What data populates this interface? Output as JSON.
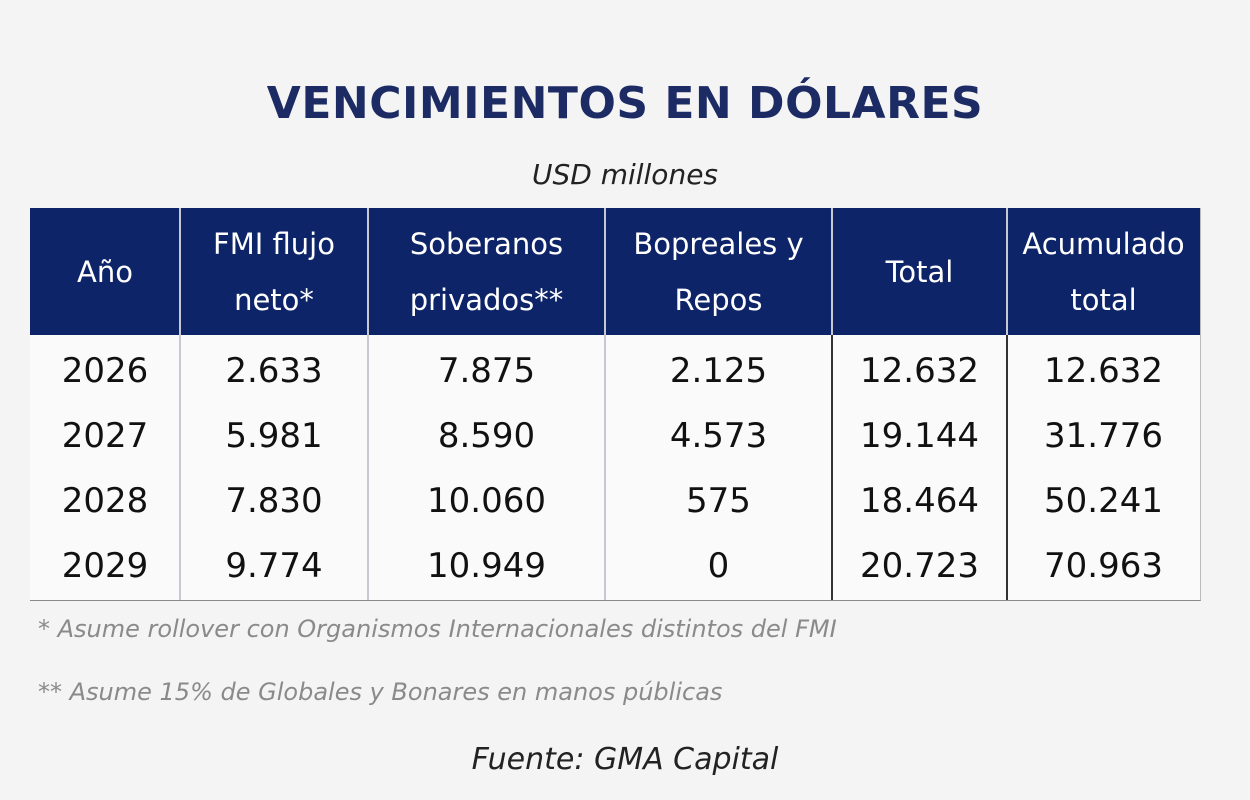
{
  "title": "VENCIMIENTOS EN DÓLARES",
  "subtitle": "USD millones",
  "table": {
    "header": [
      [
        "Año"
      ],
      [
        "FMI flujo",
        "neto*"
      ],
      [
        "Soberanos",
        "privados**"
      ],
      [
        "Bopreales y",
        "Repos"
      ],
      [
        "Total"
      ],
      [
        "Acumulado",
        "total"
      ]
    ],
    "rows": [
      [
        "2026",
        "2.633",
        "7.875",
        "2.125",
        "12.632",
        "12.632"
      ],
      [
        "2027",
        "5.981",
        "8.590",
        "4.573",
        "19.144",
        "31.776"
      ],
      [
        "2028",
        "7.830",
        "10.060",
        "575",
        "18.464",
        "50.241"
      ],
      [
        "2029",
        "9.774",
        "10.949",
        "0",
        "20.723",
        "70.963"
      ]
    ]
  },
  "notes": [
    "* Asume rollover con Organismos Internacionales distintos del FMI",
    "** Asume 15% de Globales y Bonares en manos públicas"
  ],
  "source": "Fuente: GMA Capital"
}
